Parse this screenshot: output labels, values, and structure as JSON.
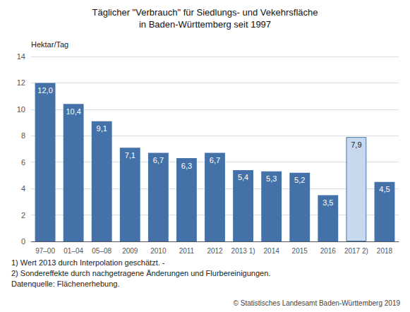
{
  "chart_data": {
    "type": "bar",
    "title": "Täglicher \"Verbrauch\" für Siedlungs- und Vekehrsfläche",
    "subtitle": "in Baden-Württemberg seit 1997",
    "ylabel": "Hektar/Tag",
    "categories": [
      "97–00",
      "01–04",
      "05–08",
      "2009",
      "2010",
      "2011",
      "2012",
      "2013 1)",
      "2014",
      "2015",
      "2016",
      "2017 2)",
      "2018"
    ],
    "values": [
      12.0,
      10.4,
      9.1,
      7.1,
      6.7,
      6.3,
      6.7,
      5.4,
      5.3,
      5.2,
      3.5,
      7.9,
      4.5
    ],
    "value_labels": [
      "12,0",
      "10,4",
      "9,1",
      "7,1",
      "6,7",
      "6,3",
      "6,7",
      "5,4",
      "5,3",
      "5,2",
      "3,5",
      "7,9",
      "4,5"
    ],
    "data_labels": true,
    "colors": [
      "#4472A8",
      "#4472A8",
      "#4472A8",
      "#4472A8",
      "#4472A8",
      "#4472A8",
      "#4472A8",
      "#4472A8",
      "#4472A8",
      "#4472A8",
      "#4472A8",
      "#c8d8ed",
      "#4472A8"
    ],
    "ylim": [
      0,
      14
    ],
    "yticks": [
      0,
      2,
      4,
      6,
      8,
      10,
      12,
      14
    ],
    "grid": true,
    "annotations": [
      "1) Wert 2013 durch Interpolation geschätzt. -",
      "2) Sondereffekte durch nachgetragene Änderungen und Flurbereinigungen.",
      "Datenquelle: Flächenerhebung.",
      "© Statistisches Landesamt Baden-Württemberg 2019"
    ]
  }
}
